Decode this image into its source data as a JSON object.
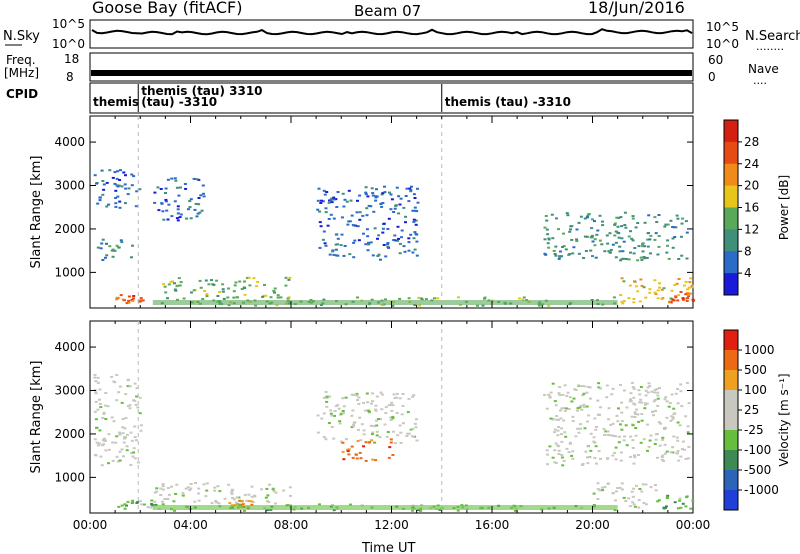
{
  "header": {
    "site": "Goose Bay (fitACF)",
    "beam": "Beam 07",
    "date": "18/Jun/2016"
  },
  "noise_panel": {
    "left_label": "N.Sky",
    "right_label": "N.Search",
    "left_ticks": [
      "10^5",
      "10^0"
    ],
    "right_ticks": [
      "10^5",
      "10^0"
    ],
    "right_key": "........"
  },
  "freq_panel": {
    "left_label_1": "Freq.",
    "left_label_2": "[MHz]",
    "left_ticks": [
      "18",
      "8"
    ],
    "right_label": "Nave",
    "right_ticks": [
      "60",
      "0"
    ],
    "right_key": "...."
  },
  "cpid_panel": {
    "label": "CPID",
    "entries": [
      {
        "text": "themis",
        "time_h": 0.0,
        "row": 1
      },
      {
        "text": "themis (tau) 3310",
        "time_h": 1.92,
        "row": 0
      },
      {
        "text": "(tau) -3310",
        "time_h": 1.92,
        "row": 1
      },
      {
        "text": "themis (tau) -3310",
        "time_h": 14.0,
        "row": 1
      }
    ]
  },
  "chart_data": [
    {
      "type": "heatmap",
      "name": "power",
      "ylabel": "Slant Range [km]",
      "xlabel": "",
      "x_range_hours": [
        0,
        24
      ],
      "ylim": [
        180,
        4600
      ],
      "yticks": [
        1000,
        2000,
        3000,
        4000
      ],
      "colorbar": {
        "label": "Power [dB]",
        "ticks": [
          "4",
          "8",
          "12",
          "16",
          "20",
          "24",
          "28"
        ],
        "colors": [
          "#1a1ad8",
          "#2a6cc8",
          "#3f8f7a",
          "#5aa95a",
          "#e8c51a",
          "#f08a18",
          "#e84a14",
          "#d42010"
        ]
      },
      "regions": [
        {
          "t0": 0.2,
          "t1": 1.7,
          "r0": 1300,
          "r1": 1800,
          "level": 2
        },
        {
          "t0": 0.1,
          "t1": 2.0,
          "r0": 2500,
          "r1": 3400,
          "level": 1
        },
        {
          "t0": 1.0,
          "t1": 2.1,
          "r0": 300,
          "r1": 500,
          "level": 6
        },
        {
          "t0": 2.8,
          "t1": 8.0,
          "r0": 300,
          "r1": 900,
          "level": 3
        },
        {
          "t0": 2.5,
          "t1": 4.5,
          "r0": 2200,
          "r1": 3200,
          "level": 1
        },
        {
          "t0": 9.0,
          "t1": 13.0,
          "r0": 1300,
          "r1": 3000,
          "level": 1
        },
        {
          "t0": 5.0,
          "t1": 21.0,
          "r0": 250,
          "r1": 450,
          "level": 3
        },
        {
          "t0": 18.0,
          "t1": 23.8,
          "r0": 1300,
          "r1": 2400,
          "level": 2
        },
        {
          "t0": 21.0,
          "t1": 24.0,
          "r0": 300,
          "r1": 900,
          "level": 4
        },
        {
          "t0": 23.0,
          "t1": 24.0,
          "r0": 300,
          "r1": 600,
          "level": 6
        }
      ]
    },
    {
      "type": "heatmap",
      "name": "velocity",
      "ylabel": "Slant Range [km]",
      "xlabel": "Time UT",
      "x_range_hours": [
        0,
        24
      ],
      "xticks": [
        "00:00",
        "04:00",
        "08:00",
        "12:00",
        "16:00",
        "20:00",
        "00:00"
      ],
      "ylim": [
        180,
        4600
      ],
      "yticks": [
        1000,
        2000,
        3000,
        4000
      ],
      "colorbar": {
        "label": "Velocity [m s⁻¹]",
        "ticks": [
          "1000",
          "500",
          "100",
          "25",
          "-25",
          "-100",
          "-500",
          "-1000"
        ],
        "colors": [
          "#1f3fd8",
          "#2c64b8",
          "#3d8a55",
          "#66bf3c",
          "#c8c8c0",
          "#c8c8c0",
          "#f0a020",
          "#ec6a14",
          "#e02010"
        ]
      },
      "regions": [
        {
          "t0": 0.1,
          "t1": 2.0,
          "r0": 1300,
          "r1": 3400,
          "level": 4
        },
        {
          "t0": 1.0,
          "t1": 2.5,
          "r0": 300,
          "r1": 500,
          "level": 3
        },
        {
          "t0": 2.5,
          "t1": 8.0,
          "r0": 400,
          "r1": 900,
          "level": 4
        },
        {
          "t0": 5.5,
          "t1": 6.5,
          "r0": 300,
          "r1": 500,
          "level": 6
        },
        {
          "t0": 2.5,
          "t1": 21.0,
          "r0": 250,
          "r1": 400,
          "level": 3
        },
        {
          "t0": 9.0,
          "t1": 13.0,
          "r0": 1800,
          "r1": 3000,
          "level": 4
        },
        {
          "t0": 10.0,
          "t1": 12.0,
          "r0": 1400,
          "r1": 1900,
          "level": 7
        },
        {
          "t0": 18.0,
          "t1": 23.8,
          "r0": 1300,
          "r1": 3200,
          "level": 4
        },
        {
          "t0": 20.0,
          "t1": 22.5,
          "r0": 300,
          "r1": 900,
          "level": 4
        },
        {
          "t0": 22.5,
          "t1": 24.0,
          "r0": 300,
          "r1": 600,
          "level": 3
        }
      ]
    }
  ]
}
